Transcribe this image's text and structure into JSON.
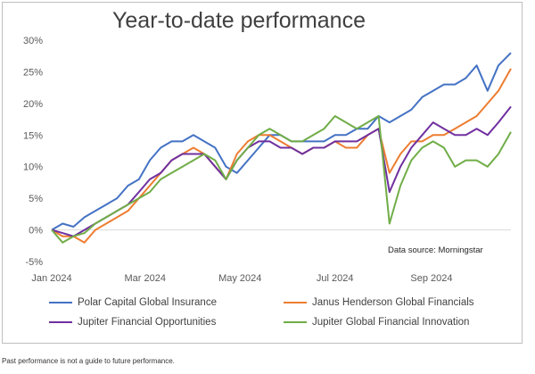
{
  "chart_data": {
    "type": "line",
    "title": "Year-to-date performance",
    "source": "Data source: Morningstar",
    "x_ticks": [
      "Jan 2024",
      "Mar 2024",
      "May 2024",
      "Jul 2024",
      "Sep 2024"
    ],
    "y_ticks": [
      "30%",
      "25%",
      "20%",
      "15%",
      "10%",
      "5%",
      "0%",
      "-5%"
    ],
    "ylim": [
      -5,
      30
    ],
    "xlim": [
      "2024-01-01",
      "2024-10-22"
    ],
    "grid": false,
    "legend_position": "bottom",
    "series": [
      {
        "name": "Polar Capital Global Insurance",
        "color": "#4472c4",
        "points": [
          [
            "2024-01-01",
            0
          ],
          [
            "2024-01-08",
            1
          ],
          [
            "2024-01-15",
            0.5
          ],
          [
            "2024-01-22",
            2
          ],
          [
            "2024-01-29",
            3
          ],
          [
            "2024-02-05",
            4
          ],
          [
            "2024-02-12",
            5
          ],
          [
            "2024-02-19",
            7
          ],
          [
            "2024-02-26",
            8
          ],
          [
            "2024-03-04",
            11
          ],
          [
            "2024-03-11",
            13
          ],
          [
            "2024-03-18",
            14
          ],
          [
            "2024-03-25",
            14
          ],
          [
            "2024-04-01",
            15
          ],
          [
            "2024-04-08",
            14
          ],
          [
            "2024-04-15",
            13
          ],
          [
            "2024-04-22",
            10
          ],
          [
            "2024-04-29",
            9
          ],
          [
            "2024-05-06",
            11
          ],
          [
            "2024-05-13",
            13
          ],
          [
            "2024-05-20",
            15
          ],
          [
            "2024-05-27",
            15
          ],
          [
            "2024-06-03",
            14
          ],
          [
            "2024-06-10",
            14
          ],
          [
            "2024-06-17",
            14
          ],
          [
            "2024-06-24",
            14
          ],
          [
            "2024-07-01",
            15
          ],
          [
            "2024-07-08",
            15
          ],
          [
            "2024-07-15",
            16
          ],
          [
            "2024-07-22",
            16
          ],
          [
            "2024-07-29",
            18
          ],
          [
            "2024-08-05",
            17
          ],
          [
            "2024-08-12",
            18
          ],
          [
            "2024-08-19",
            19
          ],
          [
            "2024-08-26",
            21
          ],
          [
            "2024-09-02",
            22
          ],
          [
            "2024-09-09",
            23
          ],
          [
            "2024-09-16",
            23
          ],
          [
            "2024-09-23",
            24
          ],
          [
            "2024-09-30",
            26
          ],
          [
            "2024-10-07",
            22
          ],
          [
            "2024-10-14",
            26
          ],
          [
            "2024-10-22",
            28
          ]
        ]
      },
      {
        "name": "Janus Henderson Global Financials",
        "color": "#ed7d31",
        "points": [
          [
            "2024-01-01",
            0
          ],
          [
            "2024-01-08",
            -1
          ],
          [
            "2024-01-15",
            -1
          ],
          [
            "2024-01-22",
            -2
          ],
          [
            "2024-01-29",
            0
          ],
          [
            "2024-02-05",
            1
          ],
          [
            "2024-02-12",
            2
          ],
          [
            "2024-02-19",
            3
          ],
          [
            "2024-02-26",
            5
          ],
          [
            "2024-03-04",
            7
          ],
          [
            "2024-03-11",
            9
          ],
          [
            "2024-03-18",
            11
          ],
          [
            "2024-03-25",
            12
          ],
          [
            "2024-04-01",
            13
          ],
          [
            "2024-04-08",
            12
          ],
          [
            "2024-04-15",
            10
          ],
          [
            "2024-04-22",
            8
          ],
          [
            "2024-04-29",
            12
          ],
          [
            "2024-05-06",
            14
          ],
          [
            "2024-05-13",
            15
          ],
          [
            "2024-05-20",
            15
          ],
          [
            "2024-05-27",
            14
          ],
          [
            "2024-06-03",
            13
          ],
          [
            "2024-06-10",
            12
          ],
          [
            "2024-06-17",
            13
          ],
          [
            "2024-06-24",
            13
          ],
          [
            "2024-07-01",
            14
          ],
          [
            "2024-07-08",
            13
          ],
          [
            "2024-07-15",
            13
          ],
          [
            "2024-07-22",
            15
          ],
          [
            "2024-07-29",
            16
          ],
          [
            "2024-08-05",
            9
          ],
          [
            "2024-08-12",
            12
          ],
          [
            "2024-08-19",
            14
          ],
          [
            "2024-08-26",
            14
          ],
          [
            "2024-09-02",
            15
          ],
          [
            "2024-09-09",
            15
          ],
          [
            "2024-09-16",
            16
          ],
          [
            "2024-09-23",
            17
          ],
          [
            "2024-09-30",
            18
          ],
          [
            "2024-10-07",
            20
          ],
          [
            "2024-10-14",
            22
          ],
          [
            "2024-10-22",
            25.5
          ]
        ]
      },
      {
        "name": "Jupiter Financial Opportunities",
        "color": "#7030a0",
        "points": [
          [
            "2024-01-01",
            0
          ],
          [
            "2024-01-08",
            -0.5
          ],
          [
            "2024-01-15",
            -1
          ],
          [
            "2024-01-22",
            0
          ],
          [
            "2024-01-29",
            1
          ],
          [
            "2024-02-05",
            2
          ],
          [
            "2024-02-12",
            3
          ],
          [
            "2024-02-19",
            4
          ],
          [
            "2024-02-26",
            6
          ],
          [
            "2024-03-04",
            8
          ],
          [
            "2024-03-11",
            9
          ],
          [
            "2024-03-18",
            11
          ],
          [
            "2024-03-25",
            12
          ],
          [
            "2024-04-01",
            12
          ],
          [
            "2024-04-08",
            12
          ],
          [
            "2024-04-15",
            10
          ],
          [
            "2024-04-22",
            8
          ],
          [
            "2024-04-29",
            11
          ],
          [
            "2024-05-06",
            13
          ],
          [
            "2024-05-13",
            14
          ],
          [
            "2024-05-20",
            14
          ],
          [
            "2024-05-27",
            13
          ],
          [
            "2024-06-03",
            13
          ],
          [
            "2024-06-10",
            12
          ],
          [
            "2024-06-17",
            13
          ],
          [
            "2024-06-24",
            13
          ],
          [
            "2024-07-01",
            14
          ],
          [
            "2024-07-08",
            14
          ],
          [
            "2024-07-15",
            14
          ],
          [
            "2024-07-22",
            15
          ],
          [
            "2024-07-29",
            16
          ],
          [
            "2024-08-05",
            6
          ],
          [
            "2024-08-12",
            10
          ],
          [
            "2024-08-19",
            13
          ],
          [
            "2024-08-26",
            15
          ],
          [
            "2024-09-02",
            17
          ],
          [
            "2024-09-09",
            16
          ],
          [
            "2024-09-16",
            15
          ],
          [
            "2024-09-23",
            15
          ],
          [
            "2024-09-30",
            16
          ],
          [
            "2024-10-07",
            15
          ],
          [
            "2024-10-14",
            17
          ],
          [
            "2024-10-22",
            19.5
          ]
        ]
      },
      {
        "name": "Jupiter Global Financial Innovation",
        "color": "#70ad47",
        "points": [
          [
            "2024-01-01",
            0
          ],
          [
            "2024-01-08",
            -2
          ],
          [
            "2024-01-15",
            -1
          ],
          [
            "2024-01-22",
            -0.5
          ],
          [
            "2024-01-29",
            1
          ],
          [
            "2024-02-05",
            2
          ],
          [
            "2024-02-12",
            3
          ],
          [
            "2024-02-19",
            4
          ],
          [
            "2024-02-26",
            5
          ],
          [
            "2024-03-04",
            6
          ],
          [
            "2024-03-11",
            8
          ],
          [
            "2024-03-18",
            9
          ],
          [
            "2024-03-25",
            10
          ],
          [
            "2024-04-01",
            11
          ],
          [
            "2024-04-08",
            12
          ],
          [
            "2024-04-15",
            11
          ],
          [
            "2024-04-22",
            8
          ],
          [
            "2024-04-29",
            11
          ],
          [
            "2024-05-06",
            13
          ],
          [
            "2024-05-13",
            15
          ],
          [
            "2024-05-20",
            16
          ],
          [
            "2024-05-27",
            15
          ],
          [
            "2024-06-03",
            14
          ],
          [
            "2024-06-10",
            14
          ],
          [
            "2024-06-17",
            15
          ],
          [
            "2024-06-24",
            16
          ],
          [
            "2024-07-01",
            18
          ],
          [
            "2024-07-08",
            17
          ],
          [
            "2024-07-15",
            16
          ],
          [
            "2024-07-22",
            17
          ],
          [
            "2024-07-29",
            18
          ],
          [
            "2024-08-05",
            1
          ],
          [
            "2024-08-12",
            7
          ],
          [
            "2024-08-19",
            11
          ],
          [
            "2024-08-26",
            13
          ],
          [
            "2024-09-02",
            14
          ],
          [
            "2024-09-09",
            13
          ],
          [
            "2024-09-16",
            10
          ],
          [
            "2024-09-23",
            11
          ],
          [
            "2024-09-30",
            11
          ],
          [
            "2024-10-07",
            10
          ],
          [
            "2024-10-14",
            12
          ],
          [
            "2024-10-22",
            15.5
          ]
        ]
      }
    ]
  },
  "footer": "Past performance is not a guide to future performance."
}
